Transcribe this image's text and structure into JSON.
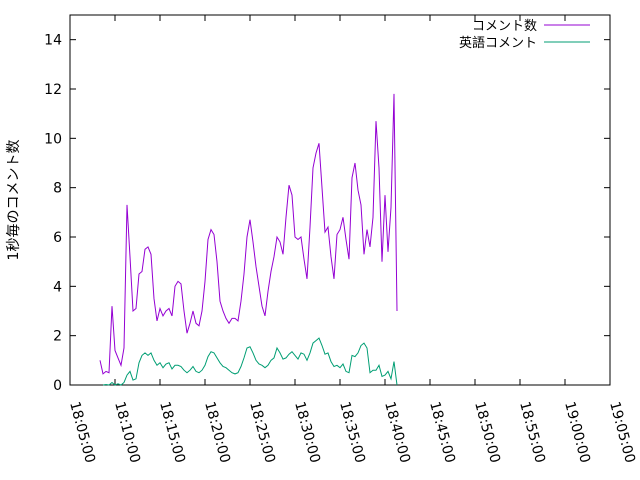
{
  "chart_data": {
    "type": "line",
    "title": "",
    "xlabel": "",
    "ylabel": "1秒毎のコメント数",
    "xlim": [
      "18:05:00",
      "19:05:00"
    ],
    "ylim": [
      0,
      15
    ],
    "x_ticks": [
      "18:05:00",
      "18:10:00",
      "18:15:00",
      "18:20:00",
      "18:25:00",
      "18:30:00",
      "18:35:00",
      "18:40:00",
      "18:45:00",
      "18:50:00",
      "18:55:00",
      "19:00:00",
      "19:05:00"
    ],
    "y_ticks": [
      "0",
      "2",
      "4",
      "6",
      "8",
      "10",
      "12",
      "14"
    ],
    "grid": false,
    "legend_position": "top-right",
    "series": [
      {
        "name": "コメント数",
        "color": "#9400d3",
        "points": [
          [
            "18:08:20",
            1.0
          ],
          [
            "18:08:40",
            0.45
          ],
          [
            "18:09:00",
            0.55
          ],
          [
            "18:09:20",
            0.5
          ],
          [
            "18:09:40",
            3.2
          ],
          [
            "18:10:00",
            1.4
          ],
          [
            "18:10:20",
            1.1
          ],
          [
            "18:10:40",
            0.8
          ],
          [
            "18:11:00",
            1.5
          ],
          [
            "18:11:20",
            7.3
          ],
          [
            "18:11:40",
            5.2
          ],
          [
            "18:12:00",
            3.0
          ],
          [
            "18:12:20",
            3.1
          ],
          [
            "18:12:40",
            4.5
          ],
          [
            "18:13:00",
            4.6
          ],
          [
            "18:13:20",
            5.5
          ],
          [
            "18:13:40",
            5.6
          ],
          [
            "18:14:00",
            5.3
          ],
          [
            "18:14:20",
            3.5
          ],
          [
            "18:14:40",
            2.6
          ],
          [
            "18:15:00",
            3.1
          ],
          [
            "18:15:20",
            2.8
          ],
          [
            "18:15:40",
            3.0
          ],
          [
            "18:16:00",
            3.1
          ],
          [
            "18:16:20",
            2.8
          ],
          [
            "18:16:40",
            4.0
          ],
          [
            "18:17:00",
            4.2
          ],
          [
            "18:17:20",
            4.1
          ],
          [
            "18:17:40",
            3.0
          ],
          [
            "18:18:00",
            2.1
          ],
          [
            "18:18:20",
            2.5
          ],
          [
            "18:18:40",
            3.0
          ],
          [
            "18:19:00",
            2.5
          ],
          [
            "18:19:20",
            2.4
          ],
          [
            "18:19:40",
            3.0
          ],
          [
            "18:20:00",
            4.2
          ],
          [
            "18:20:20",
            5.9
          ],
          [
            "18:20:40",
            6.3
          ],
          [
            "18:21:00",
            6.1
          ],
          [
            "18:21:20",
            5.0
          ],
          [
            "18:21:40",
            3.4
          ],
          [
            "18:22:00",
            3.0
          ],
          [
            "18:22:20",
            2.7
          ],
          [
            "18:22:40",
            2.5
          ],
          [
            "18:23:00",
            2.7
          ],
          [
            "18:23:20",
            2.7
          ],
          [
            "18:23:40",
            2.6
          ],
          [
            "18:24:00",
            3.4
          ],
          [
            "18:24:20",
            4.5
          ],
          [
            "18:24:40",
            6.0
          ],
          [
            "18:25:00",
            6.7
          ],
          [
            "18:25:20",
            5.8
          ],
          [
            "18:25:40",
            4.8
          ],
          [
            "18:26:00",
            4.0
          ],
          [
            "18:26:20",
            3.2
          ],
          [
            "18:26:40",
            2.8
          ],
          [
            "18:27:00",
            3.8
          ],
          [
            "18:27:20",
            4.6
          ],
          [
            "18:27:40",
            5.2
          ],
          [
            "18:28:00",
            6.0
          ],
          [
            "18:28:20",
            5.8
          ],
          [
            "18:28:40",
            5.3
          ],
          [
            "18:29:00",
            6.8
          ],
          [
            "18:29:20",
            8.1
          ],
          [
            "18:29:40",
            7.7
          ],
          [
            "18:30:00",
            6.0
          ],
          [
            "18:30:20",
            5.9
          ],
          [
            "18:30:40",
            6.0
          ],
          [
            "18:31:00",
            5.1
          ],
          [
            "18:31:20",
            4.3
          ],
          [
            "18:31:40",
            6.4
          ],
          [
            "18:32:00",
            8.8
          ],
          [
            "18:32:20",
            9.4
          ],
          [
            "18:32:40",
            9.8
          ],
          [
            "18:33:00",
            8.0
          ],
          [
            "18:33:20",
            6.2
          ],
          [
            "18:33:40",
            6.4
          ],
          [
            "18:34:00",
            5.2
          ],
          [
            "18:34:20",
            4.3
          ],
          [
            "18:34:40",
            6.1
          ],
          [
            "18:35:00",
            6.3
          ],
          [
            "18:35:20",
            6.8
          ],
          [
            "18:35:40",
            5.9
          ],
          [
            "18:36:00",
            5.1
          ],
          [
            "18:36:20",
            8.4
          ],
          [
            "18:36:40",
            9.0
          ],
          [
            "18:37:00",
            7.9
          ],
          [
            "18:37:20",
            7.3
          ],
          [
            "18:37:40",
            5.3
          ],
          [
            "18:38:00",
            6.3
          ],
          [
            "18:38:20",
            5.6
          ],
          [
            "18:38:40",
            6.8
          ],
          [
            "18:39:00",
            10.7
          ],
          [
            "18:39:20",
            8.8
          ],
          [
            "18:39:40",
            5.0
          ],
          [
            "18:40:00",
            7.7
          ],
          [
            "18:40:20",
            5.4
          ],
          [
            "18:40:40",
            7.2
          ],
          [
            "18:41:00",
            11.8
          ],
          [
            "18:41:20",
            3.0
          ]
        ]
      },
      {
        "name": "英語コメント",
        "color": "#009e73",
        "points": [
          [
            "18:08:40",
            0.0
          ],
          [
            "18:09:00",
            0.02
          ],
          [
            "18:09:20",
            0.0
          ],
          [
            "18:09:40",
            0.1
          ],
          [
            "18:10:00",
            0.0
          ],
          [
            "18:10:20",
            0.05
          ],
          [
            "18:10:40",
            0.0
          ],
          [
            "18:11:00",
            0.1
          ],
          [
            "18:11:20",
            0.4
          ],
          [
            "18:11:40",
            0.55
          ],
          [
            "18:12:00",
            0.2
          ],
          [
            "18:12:20",
            0.25
          ],
          [
            "18:12:40",
            0.9
          ],
          [
            "18:13:00",
            1.2
          ],
          [
            "18:13:20",
            1.3
          ],
          [
            "18:13:40",
            1.2
          ],
          [
            "18:14:00",
            1.3
          ],
          [
            "18:14:20",
            1.0
          ],
          [
            "18:14:40",
            0.8
          ],
          [
            "18:15:00",
            0.9
          ],
          [
            "18:15:20",
            0.7
          ],
          [
            "18:15:40",
            0.85
          ],
          [
            "18:16:00",
            0.9
          ],
          [
            "18:16:20",
            0.65
          ],
          [
            "18:16:40",
            0.8
          ],
          [
            "18:17:00",
            0.8
          ],
          [
            "18:17:20",
            0.75
          ],
          [
            "18:17:40",
            0.6
          ],
          [
            "18:18:00",
            0.5
          ],
          [
            "18:18:20",
            0.6
          ],
          [
            "18:18:40",
            0.75
          ],
          [
            "18:19:00",
            0.55
          ],
          [
            "18:19:20",
            0.5
          ],
          [
            "18:19:40",
            0.6
          ],
          [
            "18:20:00",
            0.8
          ],
          [
            "18:20:20",
            1.15
          ],
          [
            "18:20:40",
            1.35
          ],
          [
            "18:21:00",
            1.3
          ],
          [
            "18:21:20",
            1.1
          ],
          [
            "18:21:40",
            0.9
          ],
          [
            "18:22:00",
            0.75
          ],
          [
            "18:22:20",
            0.7
          ],
          [
            "18:22:40",
            0.6
          ],
          [
            "18:23:00",
            0.5
          ],
          [
            "18:23:20",
            0.45
          ],
          [
            "18:23:40",
            0.5
          ],
          [
            "18:24:00",
            0.75
          ],
          [
            "18:24:20",
            1.1
          ],
          [
            "18:24:40",
            1.5
          ],
          [
            "18:25:00",
            1.55
          ],
          [
            "18:25:20",
            1.3
          ],
          [
            "18:25:40",
            1.0
          ],
          [
            "18:26:00",
            0.85
          ],
          [
            "18:26:20",
            0.8
          ],
          [
            "18:26:40",
            0.7
          ],
          [
            "18:27:00",
            0.8
          ],
          [
            "18:27:20",
            1.0
          ],
          [
            "18:27:40",
            1.1
          ],
          [
            "18:28:00",
            1.5
          ],
          [
            "18:28:20",
            1.3
          ],
          [
            "18:28:40",
            1.05
          ],
          [
            "18:29:00",
            1.1
          ],
          [
            "18:29:20",
            1.25
          ],
          [
            "18:29:40",
            1.35
          ],
          [
            "18:30:00",
            1.2
          ],
          [
            "18:30:20",
            1.05
          ],
          [
            "18:30:40",
            1.3
          ],
          [
            "18:31:00",
            1.25
          ],
          [
            "18:31:20",
            1.0
          ],
          [
            "18:31:40",
            1.3
          ],
          [
            "18:32:00",
            1.7
          ],
          [
            "18:32:20",
            1.8
          ],
          [
            "18:32:40",
            1.9
          ],
          [
            "18:33:00",
            1.6
          ],
          [
            "18:33:20",
            1.25
          ],
          [
            "18:33:40",
            1.3
          ],
          [
            "18:34:00",
            0.95
          ],
          [
            "18:34:20",
            0.75
          ],
          [
            "18:34:40",
            0.8
          ],
          [
            "18:35:00",
            0.7
          ],
          [
            "18:35:20",
            0.85
          ],
          [
            "18:35:40",
            0.55
          ],
          [
            "18:36:00",
            0.5
          ],
          [
            "18:36:20",
            1.2
          ],
          [
            "18:36:40",
            1.15
          ],
          [
            "18:37:00",
            1.3
          ],
          [
            "18:37:20",
            1.6
          ],
          [
            "18:37:40",
            1.7
          ],
          [
            "18:38:00",
            1.5
          ],
          [
            "18:38:20",
            0.5
          ],
          [
            "18:38:40",
            0.6
          ],
          [
            "18:39:00",
            0.6
          ],
          [
            "18:39:20",
            0.8
          ],
          [
            "18:39:40",
            0.35
          ],
          [
            "18:40:00",
            0.4
          ],
          [
            "18:40:20",
            0.55
          ],
          [
            "18:40:40",
            0.25
          ],
          [
            "18:41:00",
            0.95
          ],
          [
            "18:41:20",
            0.0
          ]
        ]
      }
    ]
  }
}
